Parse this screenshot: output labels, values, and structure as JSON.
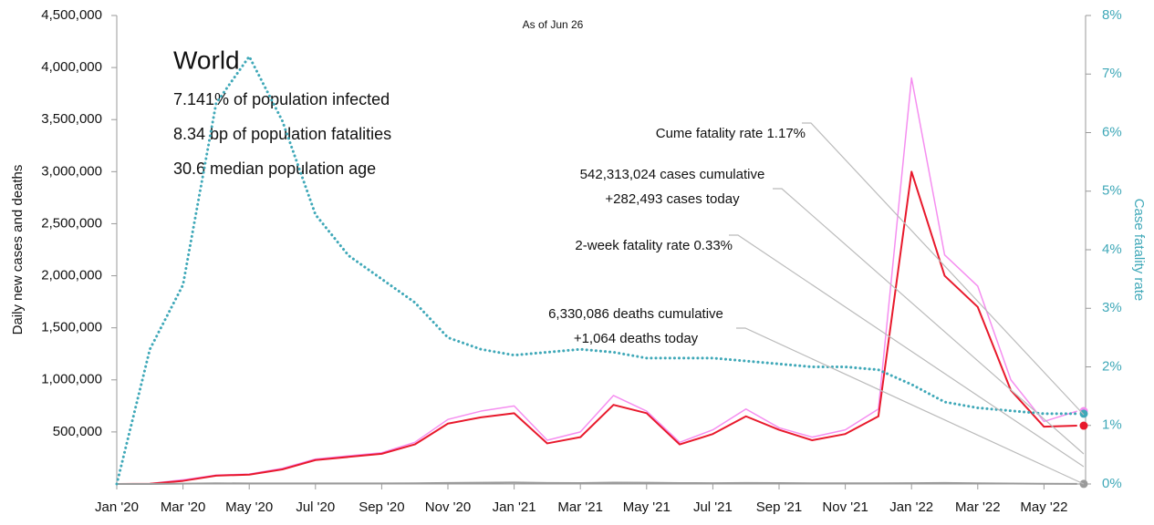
{
  "chart_data": {
    "type": "line",
    "subtitle": "As of Jun 26",
    "region": "World",
    "info": [
      "7.141% of population infected",
      "8.34 bp of population fatalities",
      "30.6 median population age"
    ],
    "y_label": "Daily new cases and deaths",
    "y2_label": "Case fatality rate",
    "categories": [
      "Jan '20",
      null,
      "Mar '20",
      null,
      "May '20",
      null,
      "Jul '20",
      null,
      "Sep '20",
      null,
      "Nov '20",
      null,
      "Jan '21",
      null,
      "Mar '21",
      null,
      "May '21",
      null,
      "Jul '21",
      null,
      "Sep '21",
      null,
      "Nov '21",
      null,
      "Jan '22",
      null,
      "Mar '22",
      null,
      "May '22",
      null
    ],
    "ylim": [
      0,
      4500000
    ],
    "yticks": [
      {
        "value": 500000,
        "label": "500,000"
      },
      {
        "value": 1000000,
        "label": "1,000,000"
      },
      {
        "value": 1500000,
        "label": "1,500,000"
      },
      {
        "value": 2000000,
        "label": "2,000,000"
      },
      {
        "value": 2500000,
        "label": "2,500,000"
      },
      {
        "value": 3000000,
        "label": "3,000,000"
      },
      {
        "value": 3500000,
        "label": "3,500,000"
      },
      {
        "value": 4000000,
        "label": "4,000,000"
      },
      {
        "value": 4500000,
        "label": "4,500,000"
      }
    ],
    "y2lim": [
      0,
      8
    ],
    "y2ticks": [
      {
        "value": 0,
        "label": "0%"
      },
      {
        "value": 1,
        "label": "1%"
      },
      {
        "value": 2,
        "label": "2%"
      },
      {
        "value": 3,
        "label": "3%"
      },
      {
        "value": 4,
        "label": "4%"
      },
      {
        "value": 5,
        "label": "5%"
      },
      {
        "value": 6,
        "label": "6%"
      },
      {
        "value": 7,
        "label": "7%"
      },
      {
        "value": 8,
        "label": "8%"
      }
    ],
    "series": [
      {
        "color": "#f58ef0",
        "style": "solid",
        "width": 1.5,
        "values": [
          0,
          3000,
          40000,
          85000,
          95000,
          150000,
          240000,
          270000,
          300000,
          400000,
          620000,
          700000,
          750000,
          420000,
          500000,
          850000,
          700000,
          400000,
          520000,
          720000,
          540000,
          450000,
          520000,
          720000,
          3900000,
          2200000,
          1900000,
          1000000,
          600000,
          700000
        ]
      },
      {
        "color": "#e8192c",
        "style": "solid",
        "width": 2,
        "values": [
          0,
          2000,
          30000,
          80000,
          90000,
          140000,
          230000,
          260000,
          290000,
          380000,
          580000,
          640000,
          680000,
          390000,
          450000,
          760000,
          680000,
          380000,
          480000,
          650000,
          520000,
          420000,
          480000,
          650000,
          3000000,
          2000000,
          1700000,
          900000,
          550000,
          560000
        ]
      },
      {
        "color": "#9a9a9a",
        "style": "solid",
        "width": 2,
        "values": [
          0,
          200,
          3000,
          7000,
          5000,
          5000,
          6000,
          6000,
          6000,
          7000,
          10000,
          12000,
          14000,
          10000,
          9000,
          13000,
          12000,
          9000,
          8000,
          10000,
          9000,
          7000,
          7000,
          7000,
          8000,
          10000,
          7000,
          4000,
          2000,
          1000
        ]
      },
      {
        "color": "#3fa8b8",
        "style": "dotted",
        "width": 3,
        "axis": "y2",
        "values": [
          0,
          2.3,
          3.4,
          6.5,
          7.3,
          6.2,
          4.6,
          3.9,
          3.5,
          3.1,
          2.5,
          2.3,
          2.2,
          2.25,
          2.3,
          2.25,
          2.15,
          2.15,
          2.15,
          2.1,
          2.05,
          2.0,
          2.0,
          1.95,
          1.7,
          1.4,
          1.3,
          1.25,
          1.2,
          1.2
        ]
      }
    ],
    "annotations": [
      [
        "Cume fatality rate 1.17%"
      ],
      [
        "542,313,024 cases cumulative",
        "+282,493 cases today"
      ],
      [
        "2-week fatality rate 0.33%"
      ],
      [
        "6,330,086 deaths cumulative",
        "+1,064 deaths today"
      ]
    ]
  }
}
